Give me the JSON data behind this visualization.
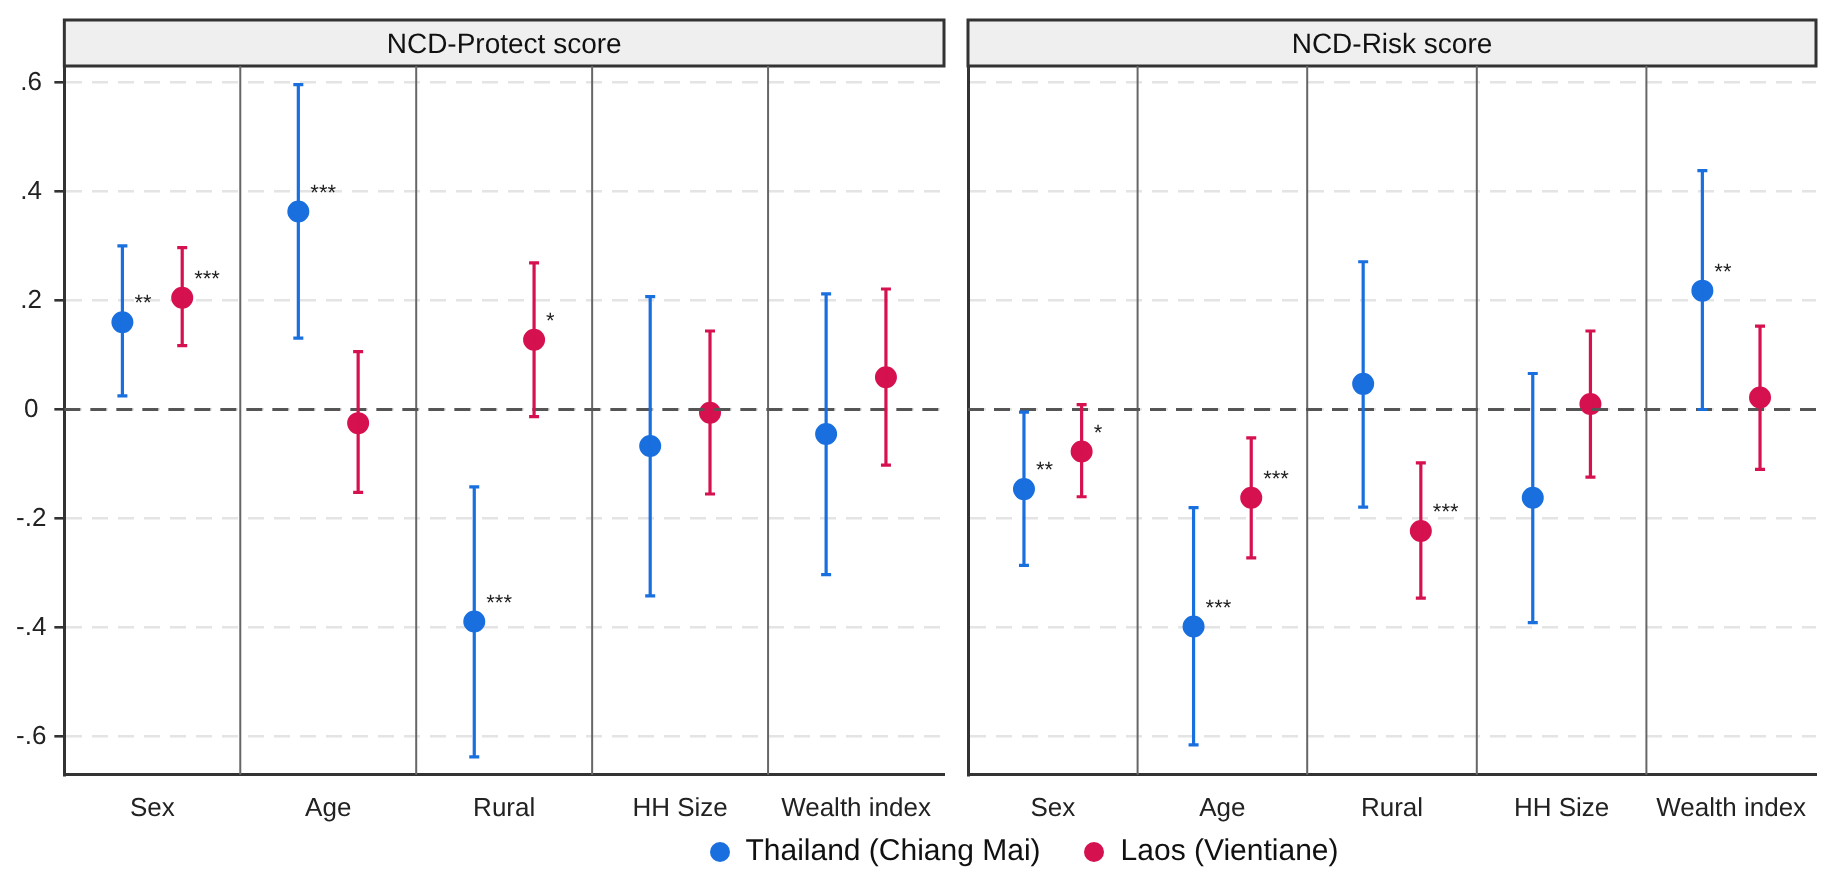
{
  "chart_data": [
    {
      "type": "scatter",
      "title": "NCD-Protect score",
      "categories": [
        "Sex",
        "Age",
        "Rural",
        "HH Size",
        "Wealth index"
      ],
      "series": [
        {
          "name": "Thailand (Chiang Mai)",
          "color": "#1a6fdf",
          "values": [
            0.16,
            0.363,
            -0.389,
            -0.067,
            -0.045
          ],
          "errors": [
            [
              0.025,
              0.3
            ],
            [
              0.131,
              0.596
            ],
            [
              -0.637,
              -0.142
            ],
            [
              -0.342,
              0.207
            ],
            [
              -0.303,
              0.212
            ]
          ],
          "value_labels": [
            "**",
            "***",
            "***",
            null,
            null
          ]
        },
        {
          "name": "Laos (Vientiane)",
          "color": "#d6114f",
          "values": [
            0.205,
            -0.025,
            0.128,
            -0.006,
            0.059
          ],
          "errors": [
            [
              0.117,
              0.297
            ],
            [
              -0.152,
              0.106
            ],
            [
              -0.013,
              0.269
            ],
            [
              -0.155,
              0.144
            ],
            [
              -0.102,
              0.221
            ]
          ],
          "value_labels": [
            "***",
            null,
            "*",
            null,
            null
          ]
        }
      ],
      "ylim": [
        -0.67,
        0.63
      ],
      "yticks": [
        {
          "value": -0.6,
          "label": "-.6"
        },
        {
          "value": -0.4,
          "label": "-.4"
        },
        {
          "value": -0.2,
          "label": "-.2"
        },
        0,
        {
          "value": 0.2,
          "label": ".2"
        },
        {
          "value": 0.4,
          "label": ".4"
        },
        {
          "value": 0.6,
          "label": ".6"
        }
      ],
      "grid": "y",
      "marker": "circle",
      "legend": "bottom",
      "ref_lines": [
        {
          "axis": "y",
          "value": 0,
          "color": "#555555",
          "line_style": "dashed"
        }
      ]
    },
    {
      "type": "scatter",
      "title": "NCD-Risk score",
      "categories": [
        "Sex",
        "Age",
        "Rural",
        "HH Size",
        "Wealth index"
      ],
      "series": [
        {
          "color": "#1a6fdf",
          "values": [
            -0.146,
            -0.398,
            0.047,
            -0.162,
            0.218
          ],
          "errors": [
            [
              -0.286,
              -0.005
            ],
            [
              -0.615,
              -0.18
            ],
            [
              -0.179,
              0.271
            ],
            [
              -0.391,
              0.066
            ],
            [
              0,
              0.438
            ]
          ],
          "value_labels": [
            "**",
            "***",
            null,
            null,
            "**"
          ]
        },
        {
          "color": "#d6114f",
          "values": [
            -0.077,
            -0.162,
            -0.223,
            0.01,
            0.022
          ],
          "errors": [
            [
              -0.16,
              0.009
            ],
            [
              -0.272,
              -0.052
            ],
            [
              -0.346,
              -0.098
            ],
            [
              -0.124,
              0.144
            ],
            [
              -0.11,
              0.153
            ]
          ],
          "value_labels": [
            "*",
            "***",
            "***",
            null,
            null
          ]
        }
      ],
      "ylim": [
        -0.67,
        0.63
      ],
      "yticks": [
        -0.6,
        -0.4,
        -0.2,
        0,
        0.2,
        0.4,
        0.6
      ],
      "grid": "y",
      "marker": "circle",
      "tick_labels": "x",
      "ref_lines": [
        {
          "axis": "y",
          "value": 0,
          "color": "#555555",
          "line_style": "dashed"
        }
      ]
    }
  ]
}
